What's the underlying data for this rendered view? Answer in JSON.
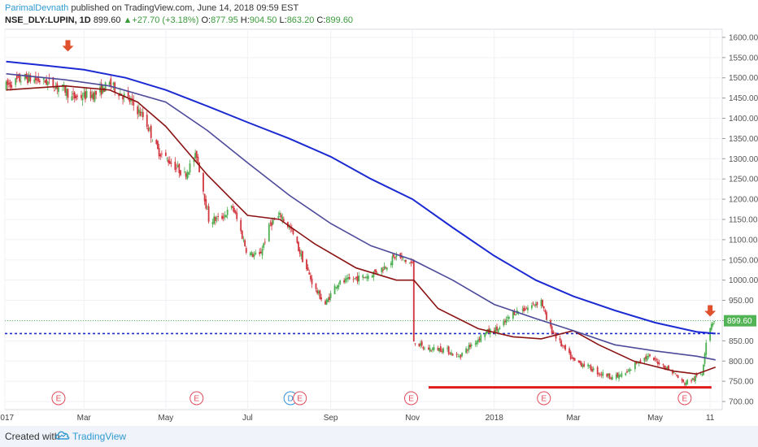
{
  "header": {
    "author": "ParimalDevnath",
    "published": "published on TradingView.com, June 14, 2018 09:59 EST",
    "symbol": "NSE_DLY:LUPIN, 1D",
    "last": "899.60",
    "change_arrow": "▲",
    "change": "+27.70 (+3.18%)",
    "open_label": "O:",
    "open": "877.95",
    "high_label": "H:",
    "high": "904.50",
    "low_label": "L:",
    "low": "863.20",
    "close_label": "C:",
    "close": "899.60"
  },
  "footer": {
    "created": "Created with",
    "brand": "TradingView",
    "logo_icon": "tradingview-cloud-icon"
  },
  "colors": {
    "up": "#4caf50",
    "down": "#d2373f",
    "ma_short": "#8b1414",
    "ma_mid": "#4d4a9a",
    "ma_long": "#1b2ad2",
    "support": "#e01b1b",
    "level_line": "#1e2fd0",
    "price_tag": "#53b455",
    "arrow": "#e0502c",
    "earnings": "#e04c5a",
    "dividend": "#2f8fd8"
  },
  "chart_data": {
    "type": "candlestick",
    "price_axis": {
      "ticks": [
        1600,
        1550,
        1500,
        1450,
        1400,
        1350,
        1300,
        1250,
        1200,
        1150,
        1100,
        1050,
        1000,
        950,
        900,
        850,
        800,
        750,
        700
      ],
      "tick_labels": [
        "1600.00",
        "1550.00",
        "1500.00",
        "1450.00",
        "1400.00",
        "1350.00",
        "1300.00",
        "1250.00",
        "1200.00",
        "1150.00",
        "1100.00",
        "1050.00",
        "1000.00",
        "950.00",
        "900.00",
        "850.00",
        "800.00",
        "750.00",
        "700.00"
      ],
      "range": [
        680,
        1620
      ]
    },
    "time_axis": {
      "labels": [
        {
          "date": "2017-01-01",
          "text": "2017"
        },
        {
          "date": "2017-03-01",
          "text": "Mar"
        },
        {
          "date": "2017-05-01",
          "text": "May"
        },
        {
          "date": "2017-07-01",
          "text": "Jul"
        },
        {
          "date": "2017-09-01",
          "text": "Sep"
        },
        {
          "date": "2017-11-01",
          "text": "Nov"
        },
        {
          "date": "2018-01-01",
          "text": "2018"
        },
        {
          "date": "2018-03-01",
          "text": "Mar"
        },
        {
          "date": "2018-05-01",
          "text": "May"
        },
        {
          "date": "2018-06-11",
          "text": "11"
        }
      ],
      "range": [
        "2017-01-01",
        "2018-06-20"
      ]
    },
    "current_price": {
      "value": 899.6,
      "label": "899.60"
    },
    "horizontal_level": 868,
    "support_line": {
      "from": "2017-11-13",
      "to": "2018-06-12",
      "value": 735
    },
    "arrows": [
      {
        "date": "2017-02-17",
        "price": 1565
      },
      {
        "date": "2018-06-11",
        "price": 910
      }
    ],
    "events": [
      {
        "date": "2017-02-10",
        "kind": "E"
      },
      {
        "date": "2017-05-24",
        "kind": "E"
      },
      {
        "date": "2017-08-02",
        "kind": "D"
      },
      {
        "date": "2017-08-09",
        "kind": "E"
      },
      {
        "date": "2017-10-31",
        "kind": "E"
      },
      {
        "date": "2018-02-07",
        "kind": "E"
      },
      {
        "date": "2018-05-23",
        "kind": "E"
      }
    ],
    "price_path": [
      [
        "2017-01-02",
        1480
      ],
      [
        "2017-01-15",
        1500
      ],
      [
        "2017-02-01",
        1490
      ],
      [
        "2017-02-15",
        1470
      ],
      [
        "2017-02-20",
        1450
      ],
      [
        "2017-03-10",
        1460
      ],
      [
        "2017-03-20",
        1485
      ],
      [
        "2017-04-05",
        1440
      ],
      [
        "2017-04-15",
        1400
      ],
      [
        "2017-04-25",
        1320
      ],
      [
        "2017-05-05",
        1290
      ],
      [
        "2017-05-15",
        1260
      ],
      [
        "2017-05-24",
        1310
      ],
      [
        "2017-05-28",
        1240
      ],
      [
        "2017-06-02",
        1150
      ],
      [
        "2017-06-10",
        1150
      ],
      [
        "2017-06-20",
        1180
      ],
      [
        "2017-06-25",
        1130
      ],
      [
        "2017-07-01",
        1065
      ],
      [
        "2017-07-10",
        1060
      ],
      [
        "2017-07-18",
        1140
      ],
      [
        "2017-07-26",
        1160
      ],
      [
        "2017-08-03",
        1120
      ],
      [
        "2017-08-10",
        1060
      ],
      [
        "2017-08-20",
        980
      ],
      [
        "2017-08-28",
        940
      ],
      [
        "2017-09-05",
        990
      ],
      [
        "2017-09-15",
        1000
      ],
      [
        "2017-09-28",
        1010
      ],
      [
        "2017-10-10",
        1030
      ],
      [
        "2017-10-20",
        1060
      ],
      [
        "2017-10-28",
        1045
      ],
      [
        "2017-11-01",
        1040
      ],
      [
        "2017-11-02",
        850
      ],
      [
        "2017-11-10",
        830
      ],
      [
        "2017-11-25",
        830
      ],
      [
        "2017-12-05",
        810
      ],
      [
        "2017-12-15",
        840
      ],
      [
        "2017-12-25",
        870
      ],
      [
        "2018-01-05",
        880
      ],
      [
        "2018-01-15",
        920
      ],
      [
        "2018-01-25",
        930
      ],
      [
        "2018-02-05",
        950
      ],
      [
        "2018-02-10",
        890
      ],
      [
        "2018-02-20",
        840
      ],
      [
        "2018-03-01",
        800
      ],
      [
        "2018-03-10",
        790
      ],
      [
        "2018-03-20",
        770
      ],
      [
        "2018-04-01",
        760
      ],
      [
        "2018-04-10",
        770
      ],
      [
        "2018-04-18",
        800
      ],
      [
        "2018-04-25",
        810
      ],
      [
        "2018-05-05",
        795
      ],
      [
        "2018-05-15",
        770
      ],
      [
        "2018-05-22",
        745
      ],
      [
        "2018-05-29",
        755
      ],
      [
        "2018-06-05",
        770
      ],
      [
        "2018-06-08",
        850
      ],
      [
        "2018-06-12",
        895
      ],
      [
        "2018-06-14",
        899.6
      ]
    ],
    "series": [
      {
        "key": "ma_short",
        "points": [
          [
            "2017-01-02",
            1470
          ],
          [
            "2017-02-15",
            1480
          ],
          [
            "2017-03-20",
            1470
          ],
          [
            "2017-04-10",
            1440
          ],
          [
            "2017-05-01",
            1380
          ],
          [
            "2017-06-01",
            1260
          ],
          [
            "2017-07-01",
            1160
          ],
          [
            "2017-07-25",
            1150
          ],
          [
            "2017-08-20",
            1090
          ],
          [
            "2017-09-20",
            1030
          ],
          [
            "2017-10-20",
            1000
          ],
          [
            "2017-11-02",
            1000
          ],
          [
            "2017-11-20",
            930
          ],
          [
            "2017-12-20",
            880
          ],
          [
            "2018-01-15",
            860
          ],
          [
            "2018-02-05",
            855
          ],
          [
            "2018-03-01",
            875
          ],
          [
            "2018-03-20",
            840
          ],
          [
            "2018-04-15",
            800
          ],
          [
            "2018-05-15",
            775
          ],
          [
            "2018-06-01",
            768
          ],
          [
            "2018-06-15",
            785
          ]
        ]
      },
      {
        "key": "ma_mid",
        "points": [
          [
            "2017-01-02",
            1510
          ],
          [
            "2017-02-15",
            1495
          ],
          [
            "2017-03-20",
            1480
          ],
          [
            "2017-05-01",
            1440
          ],
          [
            "2017-06-01",
            1370
          ],
          [
            "2017-07-01",
            1290
          ],
          [
            "2017-08-01",
            1210
          ],
          [
            "2017-09-01",
            1140
          ],
          [
            "2017-10-01",
            1085
          ],
          [
            "2017-11-01",
            1050
          ],
          [
            "2017-12-01",
            1000
          ],
          [
            "2018-01-01",
            940
          ],
          [
            "2018-02-01",
            905
          ],
          [
            "2018-03-01",
            875
          ],
          [
            "2018-04-01",
            840
          ],
          [
            "2018-05-01",
            825
          ],
          [
            "2018-06-01",
            812
          ],
          [
            "2018-06-15",
            803
          ]
        ]
      },
      {
        "key": "ma_long",
        "points": [
          [
            "2017-01-02",
            1540
          ],
          [
            "2017-02-01",
            1530
          ],
          [
            "2017-03-01",
            1520
          ],
          [
            "2017-04-01",
            1500
          ],
          [
            "2017-05-01",
            1470
          ],
          [
            "2017-06-01",
            1430
          ],
          [
            "2017-07-01",
            1390
          ],
          [
            "2017-08-01",
            1350
          ],
          [
            "2017-09-01",
            1305
          ],
          [
            "2017-10-01",
            1250
          ],
          [
            "2017-11-01",
            1200
          ],
          [
            "2017-12-01",
            1130
          ],
          [
            "2018-01-01",
            1060
          ],
          [
            "2018-02-01",
            1000
          ],
          [
            "2018-03-01",
            960
          ],
          [
            "2018-04-01",
            925
          ],
          [
            "2018-05-01",
            895
          ],
          [
            "2018-06-01",
            872
          ],
          [
            "2018-06-15",
            868
          ]
        ]
      }
    ]
  }
}
